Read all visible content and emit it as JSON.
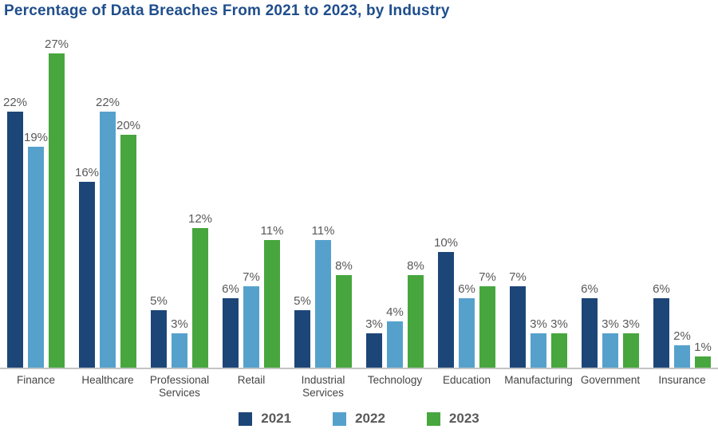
{
  "title": "Percentage of Data Breaches From 2021 to 2023, by Industry",
  "colors": {
    "title_text": "#1f4e8c",
    "value_label": "#595959",
    "axis_label": "#454545",
    "axis_line": "#c4c4c4",
    "legend_text": "#595959",
    "series_2021": "#1d4678",
    "series_2022": "#56a1cc",
    "series_2023": "#47a63e"
  },
  "chart_data": {
    "type": "bar",
    "title": "Percentage of Data Breaches From 2021 to 2023, by Industry",
    "categories": [
      "Finance",
      "Healthcare",
      "Professional Services",
      "Retail",
      "Industrial Services",
      "Technology",
      "Education",
      "Manufacturing",
      "Government",
      "Insurance"
    ],
    "series": [
      {
        "name": "2021",
        "color": "#1d4678",
        "values": [
          22,
          16,
          5,
          6,
          5,
          3,
          10,
          7,
          6,
          6
        ]
      },
      {
        "name": "2022",
        "color": "#56a1cc",
        "values": [
          19,
          22,
          3,
          7,
          11,
          4,
          6,
          3,
          3,
          2
        ]
      },
      {
        "name": "2023",
        "color": "#47a63e",
        "values": [
          27,
          20,
          12,
          11,
          8,
          8,
          7,
          3,
          3,
          1
        ]
      }
    ],
    "value_suffix": "%",
    "xlabel": "",
    "ylabel": "",
    "ylim": [
      0,
      29.5
    ],
    "grid": false,
    "data_labels": true,
    "legend_position": "bottom"
  }
}
